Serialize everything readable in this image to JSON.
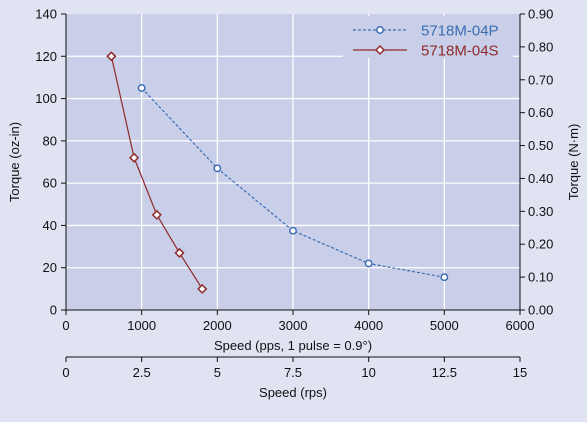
{
  "colors": {
    "page_background": "#dfe3f2",
    "plot_background": "#c9cfe8",
    "grid": "#ffffff",
    "series_p": "#3b6db3",
    "series_s": "#8e2a2a"
  },
  "chart_data": {
    "type": "line",
    "title": "",
    "xlabel": "Speed (pps, 1 pulse = 0.9°)",
    "ylabel": "Torque (oz-in)",
    "y2label": "Torque (N·m)",
    "x2label": "Speed (rps)",
    "xlim": [
      0,
      6000
    ],
    "ylim": [
      0,
      140
    ],
    "y2lim": [
      0,
      0.9
    ],
    "x2lim": [
      0,
      15
    ],
    "x_ticks": [
      "0",
      "1000",
      "2000",
      "3000",
      "4000",
      "5000",
      "6000"
    ],
    "y_ticks": [
      "0",
      "20",
      "40",
      "60",
      "80",
      "100",
      "120",
      "140"
    ],
    "y2_ticks": [
      "0.00",
      "0.10",
      "0.20",
      "0.30",
      "0.40",
      "0.50",
      "0.60",
      "0.70",
      "0.80",
      "0.90"
    ],
    "x2_ticks": [
      "0",
      "2.5",
      "5",
      "7.5",
      "10",
      "12.5",
      "15"
    ],
    "grid": true,
    "legend_position": "top-right",
    "series": [
      {
        "name": "5718M-04P",
        "marker": "circle",
        "line_style": "dashed",
        "color": "#3b6db3",
        "x": [
          1000,
          2000,
          3000,
          4000,
          5000
        ],
        "y": [
          105,
          67,
          37.5,
          22,
          15.5
        ]
      },
      {
        "name": "5718M-04S",
        "marker": "diamond",
        "line_style": "solid",
        "color": "#8e2a2a",
        "x": [
          600,
          900,
          1200,
          1500,
          1800
        ],
        "y": [
          120,
          72,
          45,
          27,
          10
        ]
      }
    ]
  }
}
